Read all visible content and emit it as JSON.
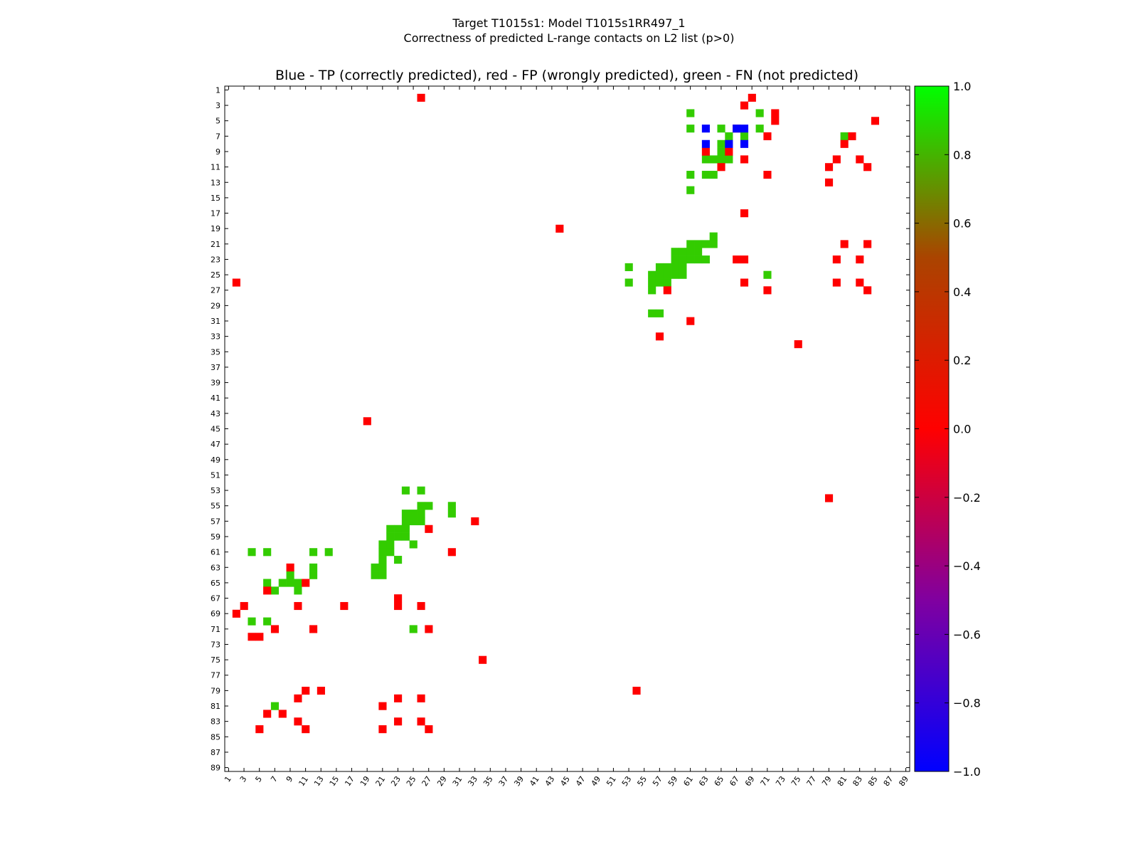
{
  "chart_data": {
    "type": "heatmap",
    "suptitle_line1": "Target T1015s1: Model T1015s1RR497_1",
    "suptitle_line2": "Correctness of predicted L-range contacts on L2 list (p>0)",
    "title": "Blue - TP (correctly predicted), red - FP (wrongly predicted), green - FN (not predicted)",
    "matrix_size": 89,
    "tick_labels": [
      "1",
      "3",
      "5",
      "7",
      "9",
      "11",
      "13",
      "15",
      "17",
      "19",
      "21",
      "23",
      "25",
      "27",
      "29",
      "31",
      "33",
      "35",
      "37",
      "39",
      "41",
      "43",
      "45",
      "47",
      "49",
      "51",
      "53",
      "55",
      "57",
      "59",
      "61",
      "63",
      "65",
      "67",
      "69",
      "71",
      "73",
      "75",
      "77",
      "79",
      "81",
      "83",
      "85",
      "87",
      "89"
    ],
    "colorbar": {
      "min": -1.0,
      "max": 1.0,
      "tick_labels": [
        "1.0",
        "0.8",
        "0.6",
        "0.4",
        "0.2",
        "0.0",
        "−0.2",
        "−0.4",
        "−0.6",
        "−0.8",
        "−1.0"
      ],
      "tick_values": [
        1.0,
        0.8,
        0.6,
        0.4,
        0.2,
        0.0,
        -0.2,
        -0.4,
        -0.6,
        -0.8,
        -1.0
      ]
    },
    "colors": {
      "tp": "#0000ff",
      "fp": "#ff0000",
      "fn": "#33cc00"
    },
    "tp_cells": [
      [
        6,
        63
      ],
      [
        6,
        67
      ],
      [
        6,
        68
      ],
      [
        8,
        63
      ],
      [
        8,
        66
      ],
      [
        8,
        68
      ]
    ],
    "fp_cells": [
      [
        2,
        26
      ],
      [
        2,
        69
      ],
      [
        3,
        68
      ],
      [
        4,
        72
      ],
      [
        5,
        72
      ],
      [
        5,
        85
      ],
      [
        6,
        67
      ],
      [
        7,
        71
      ],
      [
        7,
        82
      ],
      [
        8,
        81
      ],
      [
        9,
        63
      ],
      [
        9,
        66
      ],
      [
        10,
        68
      ],
      [
        10,
        80
      ],
      [
        10,
        83
      ],
      [
        11,
        65
      ],
      [
        11,
        79
      ],
      [
        11,
        84
      ],
      [
        12,
        71
      ],
      [
        13,
        79
      ],
      [
        17,
        68
      ],
      [
        19,
        44
      ],
      [
        21,
        81
      ],
      [
        21,
        84
      ],
      [
        23,
        67
      ],
      [
        23,
        68
      ],
      [
        23,
        80
      ],
      [
        23,
        83
      ],
      [
        26,
        2
      ],
      [
        26,
        68
      ],
      [
        26,
        80
      ],
      [
        26,
        83
      ],
      [
        27,
        58
      ],
      [
        27,
        71
      ],
      [
        27,
        84
      ],
      [
        31,
        61
      ],
      [
        33,
        57
      ],
      [
        34,
        75
      ],
      [
        44,
        19
      ],
      [
        54,
        79
      ],
      [
        57,
        33
      ],
      [
        58,
        27
      ],
      [
        61,
        30
      ],
      [
        63,
        9
      ],
      [
        65,
        11
      ],
      [
        66,
        6
      ],
      [
        67,
        23
      ],
      [
        68,
        3
      ],
      [
        68,
        10
      ],
      [
        68,
        16
      ],
      [
        68,
        23
      ],
      [
        68,
        26
      ],
      [
        69,
        2
      ],
      [
        71,
        7
      ],
      [
        71,
        12
      ],
      [
        71,
        27
      ],
      [
        72,
        4
      ],
      [
        72,
        5
      ],
      [
        75,
        34
      ],
      [
        79,
        11
      ],
      [
        79,
        13
      ],
      [
        79,
        54
      ],
      [
        80,
        10
      ],
      [
        80,
        23
      ],
      [
        80,
        26
      ],
      [
        81,
        21
      ],
      [
        82,
        6
      ],
      [
        82,
        8
      ],
      [
        83,
        10
      ],
      [
        83,
        23
      ],
      [
        83,
        26
      ],
      [
        84,
        5
      ],
      [
        84,
        11
      ],
      [
        84,
        21
      ],
      [
        84,
        27
      ]
    ],
    "fn_cells": [
      [
        4,
        61
      ],
      [
        4,
        70
      ],
      [
        6,
        61
      ],
      [
        6,
        65
      ],
      [
        6,
        70
      ],
      [
        7,
        66
      ],
      [
        7,
        68
      ],
      [
        7,
        81
      ],
      [
        8,
        65
      ],
      [
        9,
        65
      ],
      [
        10,
        63
      ],
      [
        10,
        64
      ],
      [
        10,
        65
      ],
      [
        10,
        66
      ],
      [
        12,
        61
      ],
      [
        12,
        63
      ],
      [
        12,
        64
      ],
      [
        14,
        61
      ],
      [
        20,
        64
      ],
      [
        21,
        61
      ],
      [
        21,
        62
      ],
      [
        21,
        63
      ],
      [
        21,
        64
      ],
      [
        22,
        59
      ],
      [
        22,
        60
      ],
      [
        22,
        61
      ],
      [
        22,
        62
      ],
      [
        23,
        59
      ],
      [
        23,
        60
      ],
      [
        23,
        61
      ],
      [
        23,
        62
      ],
      [
        23,
        63
      ],
      [
        24,
        53
      ],
      [
        24,
        57
      ],
      [
        24,
        58
      ],
      [
        24,
        59
      ],
      [
        24,
        60
      ],
      [
        25,
        56
      ],
      [
        25,
        57
      ],
      [
        25,
        58
      ],
      [
        25,
        59
      ],
      [
        25,
        60
      ],
      [
        25,
        71
      ],
      [
        26,
        53
      ],
      [
        26,
        56
      ],
      [
        26,
        57
      ],
      [
        26,
        58
      ],
      [
        27,
        56
      ],
      [
        30,
        56
      ],
      [
        30,
        57
      ],
      [
        53,
        24
      ],
      [
        53,
        26
      ],
      [
        55,
        26
      ],
      [
        55,
        27
      ],
      [
        55,
        30
      ],
      [
        56,
        24
      ],
      [
        56,
        25
      ],
      [
        56,
        26
      ],
      [
        56,
        30
      ],
      [
        57,
        24
      ],
      [
        57,
        25
      ],
      [
        57,
        26
      ],
      [
        58,
        22
      ],
      [
        58,
        23
      ],
      [
        58,
        24
      ],
      [
        59,
        22
      ],
      [
        59,
        23
      ],
      [
        59,
        24
      ],
      [
        60,
        21
      ],
      [
        60,
        22
      ],
      [
        60,
        25
      ],
      [
        61,
        4
      ],
      [
        61,
        6
      ],
      [
        61,
        12
      ],
      [
        61,
        14
      ],
      [
        61,
        21
      ],
      [
        61,
        22
      ],
      [
        62,
        21
      ],
      [
        62,
        23
      ],
      [
        63,
        12
      ],
      [
        63,
        20
      ],
      [
        63,
        21
      ],
      [
        64,
        9
      ],
      [
        64,
        12
      ],
      [
        64,
        20
      ],
      [
        64,
        21
      ],
      [
        65,
        6
      ],
      [
        65,
        8
      ],
      [
        65,
        9
      ],
      [
        65,
        10
      ],
      [
        66,
        7
      ],
      [
        66,
        10
      ],
      [
        70,
        4
      ],
      [
        70,
        6
      ],
      [
        71,
        25
      ],
      [
        81,
        7
      ]
    ]
  }
}
